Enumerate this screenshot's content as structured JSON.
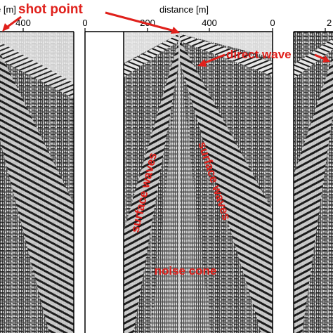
{
  "axis": {
    "label_left": "e [m]",
    "label_center": "distance [m]",
    "ticks": [
      {
        "panel": "left",
        "value": "400"
      },
      {
        "panel": "middle",
        "value": "0"
      },
      {
        "panel": "middle",
        "value": "200"
      },
      {
        "panel": "middle",
        "value": "400"
      },
      {
        "panel": "right",
        "value": "0"
      },
      {
        "panel": "right",
        "value": "2"
      }
    ]
  },
  "annotations": {
    "shot_point": "shot point",
    "direct_wave": "direct wave",
    "surface_waves_left": "surface waves",
    "surface_waves_right": "surface waves",
    "noise_cone": "noise cone"
  },
  "colors": {
    "annotation": "#e0201b",
    "seismic_dark": "#111111",
    "seismic_light": "#eeeeee",
    "background": "#ffffff"
  },
  "panels": [
    "left-gather",
    "middle-gather",
    "right-gather"
  ]
}
